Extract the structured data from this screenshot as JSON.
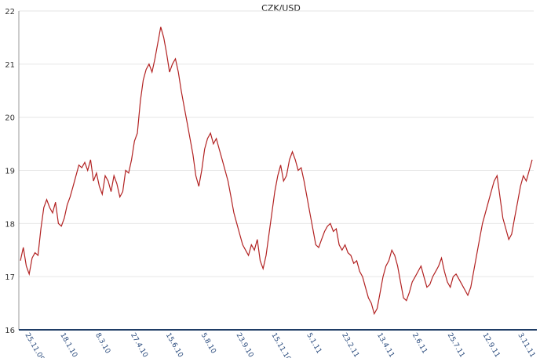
{
  "chart_data": {
    "type": "line",
    "title": "CZK/USD",
    "xlabel": "",
    "ylabel": "",
    "ylim": [
      16,
      22
    ],
    "yticks": [
      16,
      17,
      18,
      19,
      20,
      21,
      22
    ],
    "grid": "horizontal",
    "xtick_labels": [
      "25.11.09",
      "18.1.10",
      "8.3.10",
      "27.4.10",
      "15.6.10",
      "5.8.10",
      "23.9.10",
      "15.11.10",
      "5.1.11",
      "23.2.11",
      "13.4.11",
      "2.6.11",
      "25.7.11",
      "12.9.11",
      "3.11.11"
    ],
    "line_color": "#b22222",
    "series": [
      {
        "values": [
          17.3,
          17.55,
          17.2,
          17.05,
          17.35,
          17.45,
          17.4,
          17.9,
          18.3,
          18.45,
          18.3,
          18.2,
          18.4,
          18.0,
          17.95,
          18.1,
          18.35,
          18.5,
          18.7,
          18.9,
          19.1,
          19.05,
          19.15,
          19.0,
          19.2,
          18.8,
          18.95,
          18.7,
          18.55,
          18.9,
          18.8,
          18.6,
          18.9,
          18.75,
          18.5,
          18.6,
          19.0,
          18.95,
          19.2,
          19.55,
          19.7,
          20.3,
          20.7,
          20.9,
          21.0,
          20.85,
          21.1,
          21.4,
          21.7,
          21.5,
          21.2,
          20.85,
          21.0,
          21.1,
          20.85,
          20.5,
          20.2,
          19.9,
          19.6,
          19.3,
          18.9,
          18.7,
          19.0,
          19.4,
          19.6,
          19.7,
          19.5,
          19.6,
          19.4,
          19.2,
          19.0,
          18.8,
          18.5,
          18.2,
          18.0,
          17.8,
          17.6,
          17.5,
          17.4,
          17.6,
          17.5,
          17.7,
          17.3,
          17.15,
          17.4,
          17.8,
          18.2,
          18.6,
          18.9,
          19.1,
          18.8,
          18.9,
          19.2,
          19.35,
          19.2,
          19.0,
          19.05,
          18.8,
          18.5,
          18.2,
          17.9,
          17.6,
          17.55,
          17.7,
          17.85,
          17.95,
          18.0,
          17.85,
          17.9,
          17.6,
          17.5,
          17.6,
          17.45,
          17.4,
          17.25,
          17.3,
          17.1,
          17.0,
          16.8,
          16.6,
          16.5,
          16.3,
          16.4,
          16.7,
          17.0,
          17.2,
          17.3,
          17.5,
          17.4,
          17.2,
          16.9,
          16.6,
          16.55,
          16.7,
          16.9,
          17.0,
          17.1,
          17.2,
          17.0,
          16.8,
          16.85,
          17.0,
          17.1,
          17.2,
          17.35,
          17.1,
          16.9,
          16.8,
          17.0,
          17.05,
          16.95,
          16.85,
          16.75,
          16.65,
          16.8,
          17.1,
          17.4,
          17.7,
          18.0,
          18.2,
          18.4,
          18.6,
          18.8,
          18.9,
          18.5,
          18.1,
          17.9,
          17.7,
          17.8,
          18.1,
          18.4,
          18.7,
          18.9,
          18.8,
          19.0,
          19.2
        ]
      }
    ]
  }
}
